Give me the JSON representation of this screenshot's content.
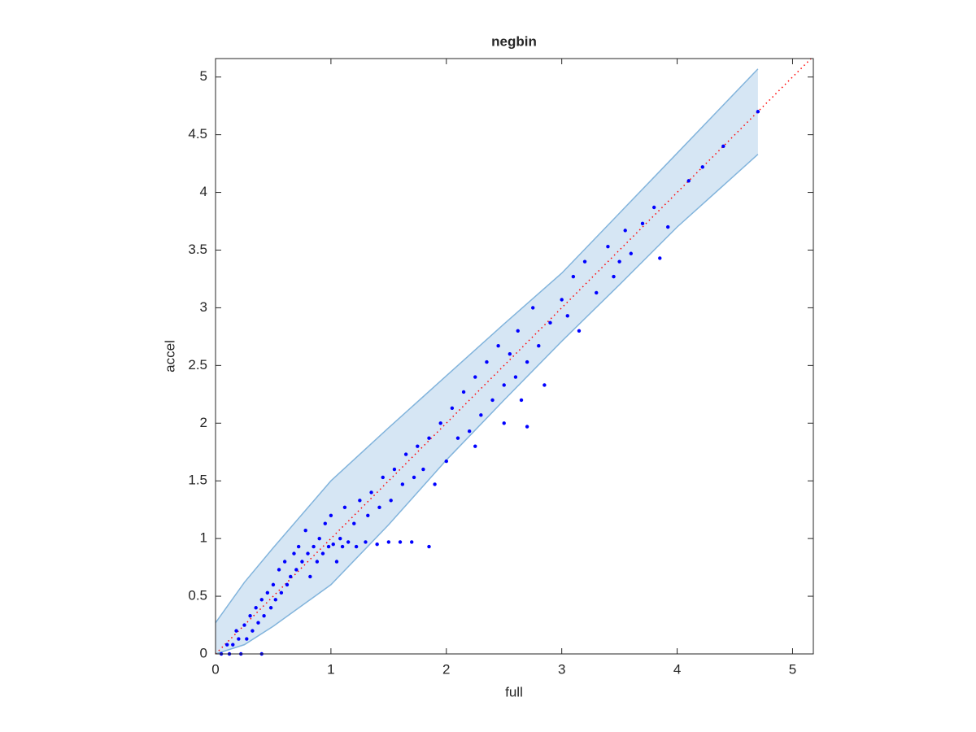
{
  "chart_data": {
    "type": "scatter",
    "title": "negbin",
    "x_label": "full",
    "y_label": "accel",
    "xlim": [
      0,
      5.18
    ],
    "ylim": [
      0,
      5.16
    ],
    "xticks": [
      0,
      1,
      2,
      3,
      4,
      5
    ],
    "yticks": [
      0,
      0.5,
      1,
      1.5,
      2,
      2.5,
      3,
      3.5,
      4,
      4.5,
      5
    ],
    "color": "#0000ff",
    "x": [
      0.05,
      0.1,
      0.12,
      0.15,
      0.18,
      0.2,
      0.22,
      0.25,
      0.27,
      0.3,
      0.32,
      0.35,
      0.37,
      0.4,
      0.4,
      0.42,
      0.45,
      0.48,
      0.5,
      0.52,
      0.55,
      0.57,
      0.6,
      0.62,
      0.65,
      0.68,
      0.7,
      0.72,
      0.75,
      0.78,
      0.8,
      0.82,
      0.85,
      0.88,
      0.9,
      0.93,
      0.95,
      0.98,
      1.0,
      1.02,
      1.05,
      1.08,
      1.1,
      1.12,
      1.15,
      1.2,
      1.22,
      1.25,
      1.3,
      1.32,
      1.35,
      1.4,
      1.42,
      1.45,
      1.5,
      1.52,
      1.55,
      1.6,
      1.62,
      1.65,
      1.7,
      1.72,
      1.75,
      1.8,
      1.85,
      1.85,
      1.9,
      1.95,
      2.0,
      2.05,
      2.1,
      2.15,
      2.2,
      2.25,
      2.25,
      2.3,
      2.35,
      2.4,
      2.45,
      2.5,
      2.5,
      2.55,
      2.6,
      2.62,
      2.65,
      2.7,
      2.7,
      2.75,
      2.8,
      2.85,
      2.9,
      3.0,
      3.05,
      3.1,
      3.15,
      3.2,
      3.3,
      3.4,
      3.45,
      3.5,
      3.55,
      3.6,
      3.7,
      3.8,
      3.85,
      3.92,
      4.1,
      4.22,
      4.4,
      4.7
    ],
    "y": [
      0.0,
      0.08,
      0.0,
      0.08,
      0.2,
      0.13,
      0.0,
      0.25,
      0.13,
      0.33,
      0.2,
      0.4,
      0.27,
      0.0,
      0.47,
      0.33,
      0.53,
      0.4,
      0.6,
      0.47,
      0.73,
      0.53,
      0.8,
      0.6,
      0.67,
      0.87,
      0.73,
      0.93,
      0.8,
      1.07,
      0.87,
      0.67,
      0.93,
      0.8,
      1.0,
      0.87,
      1.13,
      0.93,
      1.2,
      0.95,
      0.8,
      1.0,
      0.93,
      1.27,
      0.97,
      1.13,
      0.93,
      1.33,
      0.97,
      1.2,
      1.4,
      0.95,
      1.27,
      1.53,
      0.97,
      1.33,
      1.6,
      0.97,
      1.47,
      1.73,
      0.97,
      1.53,
      1.8,
      1.6,
      0.93,
      1.87,
      1.47,
      2.0,
      1.67,
      2.13,
      1.87,
      2.27,
      1.93,
      2.4,
      1.8,
      2.07,
      2.53,
      2.2,
      2.67,
      2.33,
      2.0,
      2.6,
      2.4,
      2.8,
      2.2,
      2.53,
      1.97,
      3.0,
      2.67,
      2.33,
      2.87,
      3.07,
      2.93,
      3.27,
      2.8,
      3.4,
      3.13,
      3.53,
      3.27,
      3.4,
      3.67,
      3.47,
      3.73,
      3.87,
      3.43,
      3.7,
      4.1,
      4.22,
      4.4,
      4.7
    ],
    "band": {
      "x": [
        0,
        0.25,
        0.5,
        1,
        1.5,
        2,
        2.5,
        3,
        3.5,
        4,
        4.7
      ],
      "upper": [
        0.27,
        0.62,
        0.92,
        1.5,
        1.96,
        2.41,
        2.86,
        3.3,
        3.82,
        4.34,
        5.07
      ],
      "lower": [
        0,
        0.08,
        0.24,
        0.6,
        1.12,
        1.68,
        2.2,
        2.71,
        3.2,
        3.7,
        4.33
      ],
      "color": "#d6e6f4",
      "edge_color": "#82b4dc"
    },
    "reference_line": {
      "x": [
        0,
        5.18
      ],
      "y": [
        0,
        5.18
      ],
      "color": "#ff0000",
      "style": "dotted"
    }
  }
}
